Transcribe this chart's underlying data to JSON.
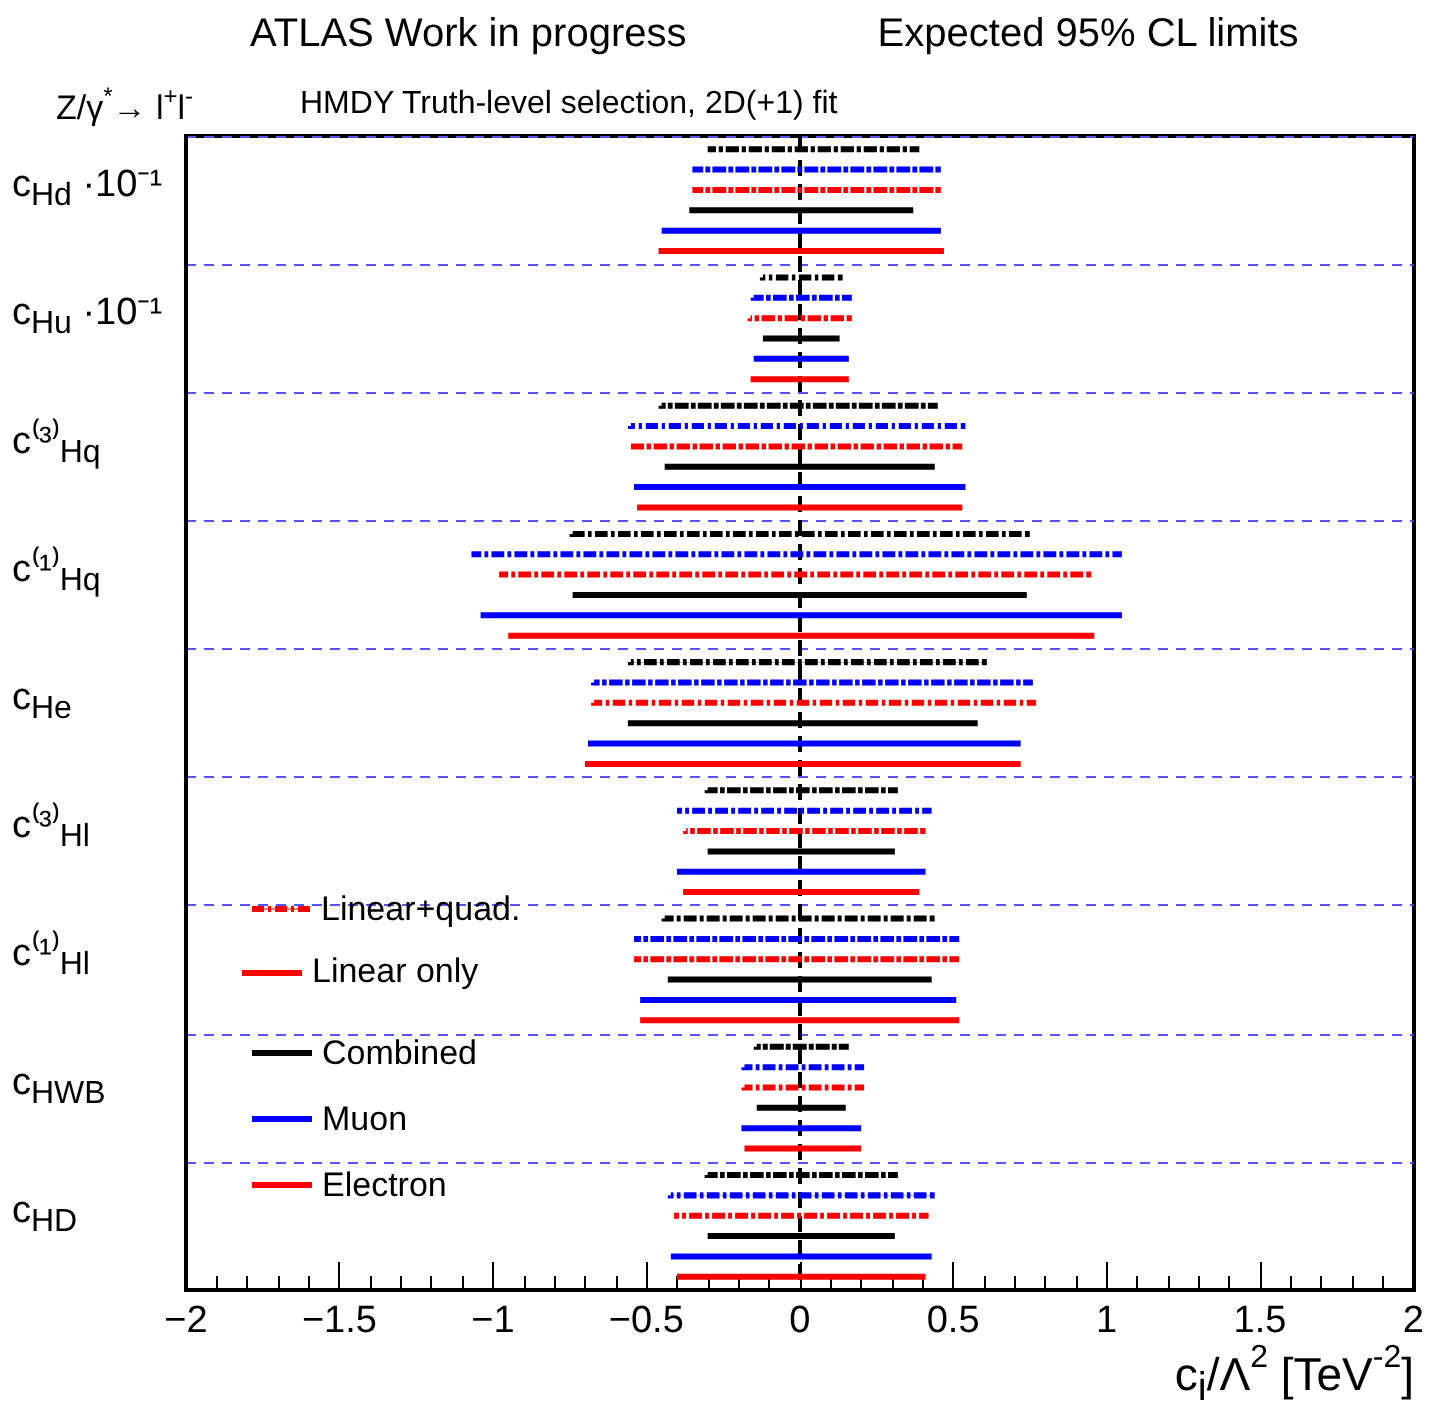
{
  "chart_data": {
    "type": "bar",
    "orientation": "horizontal",
    "title": "ATLAS Work in progress",
    "subtitle": "Expected 95% CL limits",
    "xlabel": "c$_{i}$/Λ$^{2}$ [TeV$^{-2}$]",
    "annotations": [
      "Z/γ$^{*}$→ l$^{+}$l$^{-}$",
      "HMDY Truth-level selection, 2D(+1) fit",
      "Linear only"
    ],
    "categories": [
      "c$_{Hd}$ ·10⁻¹",
      "c$_{Hu}$ ·10⁻¹",
      "c⁽³⁾$_{Hq}$",
      "c⁽¹⁾$_{Hq}$",
      "c$_{He}$",
      "c⁽³⁾$_{Hl}$",
      "c⁽¹⁾$_{Hl}$",
      "c$_{HWB}$",
      "c$_{HD}$"
    ],
    "series": [
      {
        "color": "#000000",
        "line_style": "dashed",
        "base": [
          -0.29,
          -0.12,
          -0.45,
          -0.74,
          -0.55,
          -0.3,
          -0.44,
          -0.14,
          -0.3
        ],
        "values": [
          0.67,
          0.25,
          0.89,
          1.48,
          1.15,
          0.61,
          0.87,
          0.29,
          0.61
        ]
      },
      {
        "color": "#0000ff",
        "line_style": "dashed",
        "base": [
          -0.34,
          -0.15,
          -0.55,
          -1.06,
          -0.67,
          -0.39,
          -0.53,
          -0.18,
          -0.42
        ],
        "values": [
          0.79,
          0.31,
          1.08,
          2.1,
          1.42,
          0.81,
          1.04,
          0.38,
          0.85
        ]
      },
      {
        "name": "Linear+quad.",
        "color": "#ff0000",
        "line_style": "dashed",
        "base": [
          -0.34,
          -0.16,
          -0.54,
          -0.97,
          -0.67,
          -0.37,
          -0.53,
          -0.18,
          -0.4
        ],
        "values": [
          0.79,
          0.32,
          1.06,
          1.91,
          1.43,
          0.77,
          1.04,
          0.38,
          0.81
        ]
      },
      {
        "name": "Combined",
        "color": "#000000",
        "line_style": "solid",
        "base": [
          -0.36,
          -0.12,
          -0.44,
          -0.74,
          -0.56,
          -0.3,
          -0.43,
          -0.14,
          -0.3
        ],
        "values": [
          0.73,
          0.25,
          0.88,
          1.48,
          1.14,
          0.61,
          0.86,
          0.29,
          0.61
        ]
      },
      {
        "name": "Muon",
        "color": "#0000ff",
        "line_style": "solid",
        "base": [
          -0.45,
          -0.15,
          -0.54,
          -1.04,
          -0.69,
          -0.4,
          -0.52,
          -0.19,
          -0.42
        ],
        "values": [
          0.91,
          0.31,
          1.08,
          2.09,
          1.41,
          0.81,
          1.03,
          0.39,
          0.85
        ]
      },
      {
        "name": "Electron",
        "color": "#ff0000",
        "line_style": "solid",
        "base": [
          -0.46,
          -0.16,
          -0.53,
          -0.95,
          -0.7,
          -0.38,
          -0.52,
          -0.18,
          -0.4
        ],
        "values": [
          0.93,
          0.32,
          1.06,
          1.91,
          1.42,
          0.77,
          1.04,
          0.38,
          0.81
        ]
      }
    ],
    "xlim": [
      -2,
      2
    ],
    "xticks": [
      {
        "value": -2,
        "label": "−2"
      },
      {
        "value": -1.5,
        "label": "−1.5"
      },
      {
        "value": -1,
        "label": "−1"
      },
      {
        "value": -0.5,
        "label": "−0.5"
      },
      0,
      0.5,
      1,
      1.5,
      2
    ],
    "ref_lines": [
      {
        "axis": "x",
        "value": 0,
        "color": "#000000",
        "line_style": "dashed"
      }
    ],
    "grid": "y",
    "legend": "bottom left"
  }
}
